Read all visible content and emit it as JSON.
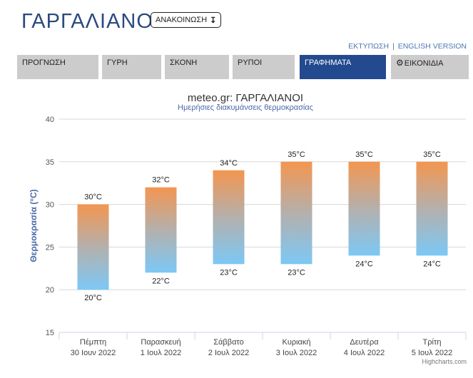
{
  "header": {
    "city": "ΓΑΡΓΑΛΙΑΝΟΙ",
    "announcement_label": "ΑΝΑΚΟΙΝΩΣΗ",
    "announcement_icon": "arrow-down-icon"
  },
  "links": {
    "print": "ΕΚΤΥΠΩΣΗ",
    "separator": "|",
    "english": "ENGLISH VERSION"
  },
  "tabs": [
    {
      "label": "ΠΡΟΓΝΩΣΗ",
      "active": false
    },
    {
      "label": "ΓΥΡΗ",
      "active": false
    },
    {
      "label": "ΣΚΟΝΗ",
      "active": false
    },
    {
      "label": "ΡΥΠΟΙ",
      "active": false
    },
    {
      "label": "ΓΡΑΦΗΜΑΤΑ",
      "active": true
    },
    {
      "label": "ΕΙΚΟΝΙΔΙΑ",
      "active": false,
      "icon": "gear-icon"
    }
  ],
  "colors": {
    "title": "#2a4a7f",
    "tab": "#cccccc",
    "tab_active": "#234a8f",
    "bar_top": "#f39650",
    "bar_bottom": "#7cc8f5",
    "axis_label": "#4a68a8"
  },
  "chart_data": {
    "type": "bar",
    "subtype": "columnrange",
    "title": "meteo.gr: ΓΑΡΓΑΛΙΑΝΟΙ",
    "subtitle": "Ημερήσιες διακυμάνσεις θερμοκρασίας",
    "ylabel": "Θερμοκρασία (°C)",
    "ylim": [
      15,
      40
    ],
    "yticks": [
      15,
      20,
      25,
      30,
      35,
      40
    ],
    "grid": true,
    "legend": "none",
    "unit": "°C",
    "credit": "Highcharts.com",
    "categories": [
      {
        "day": "Πέμπτη",
        "date": "30 Ιουν 2022"
      },
      {
        "day": "Παρασκευή",
        "date": "1 Ιουλ 2022"
      },
      {
        "day": "Σάββατο",
        "date": "2 Ιουλ 2022"
      },
      {
        "day": "Κυριακή",
        "date": "3 Ιουλ 2022"
      },
      {
        "day": "Δευτέρα",
        "date": "4 Ιουλ 2022"
      },
      {
        "day": "Τρίτη",
        "date": "5 Ιουλ 2022"
      }
    ],
    "low": [
      20,
      22,
      23,
      23,
      24,
      24
    ],
    "high": [
      30,
      32,
      34,
      35,
      35,
      35
    ]
  }
}
